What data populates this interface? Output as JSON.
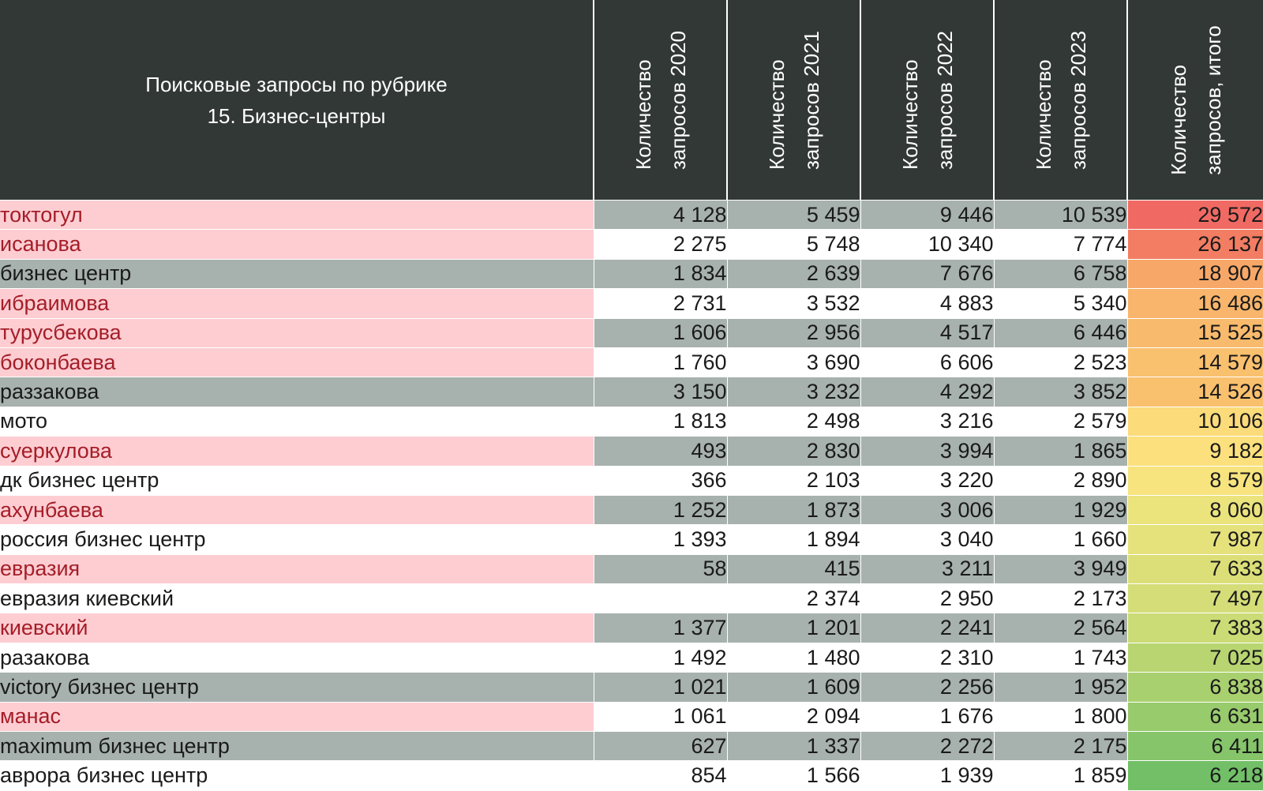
{
  "chart_data": {
    "type": "table",
    "title_lines": [
      "Поисковые запросы по рубрике",
      "15. Бизнес-центры"
    ],
    "columns": [
      {
        "line1": "Количество",
        "line2": "запросов 2020"
      },
      {
        "line1": "Количество",
        "line2": "запросов 2021"
      },
      {
        "line1": "Количество",
        "line2": "запросов 2022"
      },
      {
        "line1": "Количество",
        "line2": "запросов 2023"
      },
      {
        "line1": "Количество",
        "line2": "запросов, итого"
      }
    ],
    "rows": [
      {
        "name": "токтогул",
        "highlight": true,
        "values": [
          "4 128",
          "5 459",
          "9 446",
          "10 539"
        ],
        "total": "29 572",
        "total_color": "#f06a63"
      },
      {
        "name": "исанова",
        "highlight": true,
        "values": [
          "2 275",
          "5 748",
          "10 340",
          "7 774"
        ],
        "total": "26 137",
        "total_color": "#f27d63"
      },
      {
        "name": "бизнес центр",
        "highlight": false,
        "values": [
          "1 834",
          "2 639",
          "7 676",
          "6 758"
        ],
        "total": "18 907",
        "total_color": "#f7a868"
      },
      {
        "name": "ибраимова",
        "highlight": true,
        "values": [
          "2 731",
          "3 532",
          "4 883",
          "5 340"
        ],
        "total": "16 486",
        "total_color": "#f8b56b"
      },
      {
        "name": "турусбекова",
        "highlight": true,
        "values": [
          "1 606",
          "2 956",
          "4 517",
          "6 446"
        ],
        "total": "15 525",
        "total_color": "#f8ba6c"
      },
      {
        "name": "боконбаева",
        "highlight": true,
        "values": [
          "1 760",
          "3 690",
          "6 606",
          "2 523"
        ],
        "total": "14 579",
        "total_color": "#f9c06e"
      },
      {
        "name": "раззакова",
        "highlight": false,
        "values": [
          "3 150",
          "3 232",
          "4 292",
          "3 852"
        ],
        "total": "14 526",
        "total_color": "#f9c06e"
      },
      {
        "name": "мото",
        "highlight": false,
        "values": [
          "1 813",
          "2 498",
          "3 216",
          "2 579"
        ],
        "total": "10 106",
        "total_color": "#fbdb7a"
      },
      {
        "name": "суеркулова",
        "highlight": true,
        "values": [
          "493",
          "2 830",
          "3 994",
          "1 865"
        ],
        "total": "9 182",
        "total_color": "#fbe07d"
      },
      {
        "name": "дк бизнес центр",
        "highlight": false,
        "values": [
          "366",
          "2 103",
          "3 220",
          "2 890"
        ],
        "total": "8 579",
        "total_color": "#f7e47e"
      },
      {
        "name": "ахунбаева",
        "highlight": true,
        "values": [
          "1 252",
          "1 873",
          "3 006",
          "1 929"
        ],
        "total": "8 060",
        "total_color": "#ebe37c"
      },
      {
        "name": "россия бизнес центр",
        "highlight": false,
        "values": [
          "1 393",
          "1 894",
          "3 040",
          "1 660"
        ],
        "total": "7 987",
        "total_color": "#e6e27b"
      },
      {
        "name": "евразия",
        "highlight": true,
        "values": [
          "58",
          "415",
          "3 211",
          "3 949"
        ],
        "total": "7 633",
        "total_color": "#dcdf78"
      },
      {
        "name": "евразия киевский",
        "highlight": false,
        "values": [
          "",
          "2 374",
          "2 950",
          "2 173"
        ],
        "total": "7 497",
        "total_color": "#d4dd77"
      },
      {
        "name": "киевский",
        "highlight": true,
        "values": [
          "1 377",
          "1 201",
          "2 241",
          "2 564"
        ],
        "total": "7 383",
        "total_color": "#cbdb75"
      },
      {
        "name": "разакова",
        "highlight": false,
        "values": [
          "1 492",
          "1 480",
          "2 310",
          "1 743"
        ],
        "total": "7 025",
        "total_color": "#b8d572"
      },
      {
        "name": "victory бизнес центр",
        "highlight": false,
        "values": [
          "1 021",
          "1 609",
          "2 256",
          "1 952"
        ],
        "total": "6 838",
        "total_color": "#a9d06f"
      },
      {
        "name": "манас",
        "highlight": true,
        "values": [
          "1 061",
          "2 094",
          "1 676",
          "1 800"
        ],
        "total": "6 631",
        "total_color": "#98cb6c"
      },
      {
        "name": "maximum бизнес центр",
        "highlight": false,
        "values": [
          "627",
          "1 337",
          "2 272",
          "2 175"
        ],
        "total": "6 411",
        "total_color": "#86c56a"
      },
      {
        "name": "аврора бизнес центр",
        "highlight": false,
        "values": [
          "854",
          "1 566",
          "1 939",
          "1 859"
        ],
        "total": "6 218",
        "total_color": "#72bf68"
      }
    ]
  }
}
